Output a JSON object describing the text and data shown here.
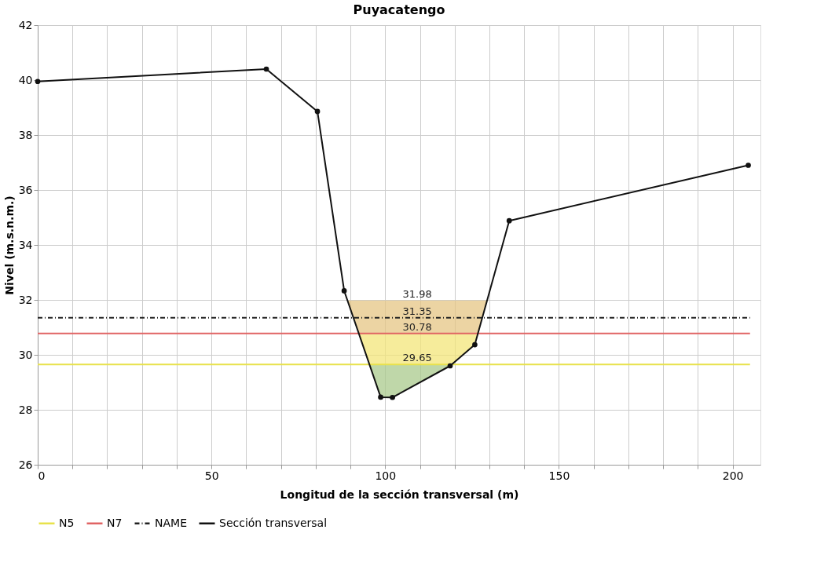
{
  "chart_data": {
    "type": "line",
    "title": "Puyacatengo",
    "xlabel": "Longitud de la sección transversal (m)",
    "ylabel": "Nivel (m.s.n.m.)",
    "xlim": [
      0,
      208
    ],
    "ylim": [
      26,
      42
    ],
    "xticks": [
      0,
      {
        "value": 10,
        "label": null
      },
      {
        "value": 20,
        "label": null
      },
      {
        "value": 30,
        "label": null
      },
      {
        "value": 40,
        "label": null
      },
      50,
      {
        "value": 60,
        "label": null
      },
      {
        "value": 70,
        "label": null
      },
      {
        "value": 80,
        "label": null
      },
      {
        "value": 90,
        "label": null
      },
      100,
      {
        "value": 110,
        "label": null
      },
      {
        "value": 120,
        "label": null
      },
      {
        "value": 130,
        "label": null
      },
      {
        "value": 140,
        "label": null
      },
      150,
      {
        "value": 160,
        "label": null
      },
      {
        "value": 170,
        "label": null
      },
      {
        "value": 180,
        "label": null
      },
      {
        "value": 190,
        "label": null
      },
      200
    ],
    "yticks": [
      26,
      28,
      30,
      32,
      34,
      36,
      38,
      40,
      42
    ],
    "grid": true,
    "legend": "bottom",
    "series": [
      {
        "type": "area",
        "color": "#a9c98c",
        "x": [
          95.5,
          98.7,
          102.1,
          118.7,
          119.2
        ],
        "values": [
          29.65,
          29.65,
          29.65,
          29.65,
          29.65
        ]
      },
      {
        "type": "area",
        "color": "#f3e57a",
        "x": [
          92.4,
          95.5,
          119.2,
          125.8,
          126.7
        ],
        "values": [
          30.78,
          30.78,
          30.78,
          30.78,
          30.78
        ]
      },
      {
        "type": "area",
        "color": "#e6c684",
        "x": [
          89.15,
          92.4,
          126.7,
          129.3
        ],
        "values": [
          31.98,
          31.98,
          31.98,
          31.98
        ]
      },
      {
        "name": "N5",
        "color": "#e8e24c",
        "line_style": "solid",
        "marker": "none",
        "x": [
          0,
          205
        ],
        "values": [
          29.65,
          29.65
        ]
      },
      {
        "name": "N7",
        "color": "#e06464",
        "line_style": "solid",
        "marker": "none",
        "x": [
          0,
          205
        ],
        "values": [
          30.78,
          30.78
        ]
      },
      {
        "name": "NAME",
        "color": "#222222",
        "line_style": "dashdot",
        "marker": "none",
        "x": [
          0,
          205
        ],
        "values": [
          31.35,
          31.35
        ]
      },
      {
        "name": "Sección transversal",
        "color": "#111111",
        "line_style": "solid",
        "marker": "circle",
        "x": [
          0,
          65.8,
          80.5,
          88.2,
          98.7,
          102.1,
          118.7,
          125.8,
          135.7,
          204.5
        ],
        "values": [
          39.95,
          40.4,
          38.86,
          32.33,
          28.46,
          28.45,
          29.6,
          30.37,
          34.88,
          36.9
        ]
      }
    ],
    "annotations": [
      {
        "text": "31.98",
        "y": 31.98
      },
      {
        "text": "31.35",
        "y": 31.35
      },
      {
        "text": "30.78",
        "y": 30.78
      },
      {
        "text": "29.65",
        "y": 29.65
      }
    ]
  }
}
